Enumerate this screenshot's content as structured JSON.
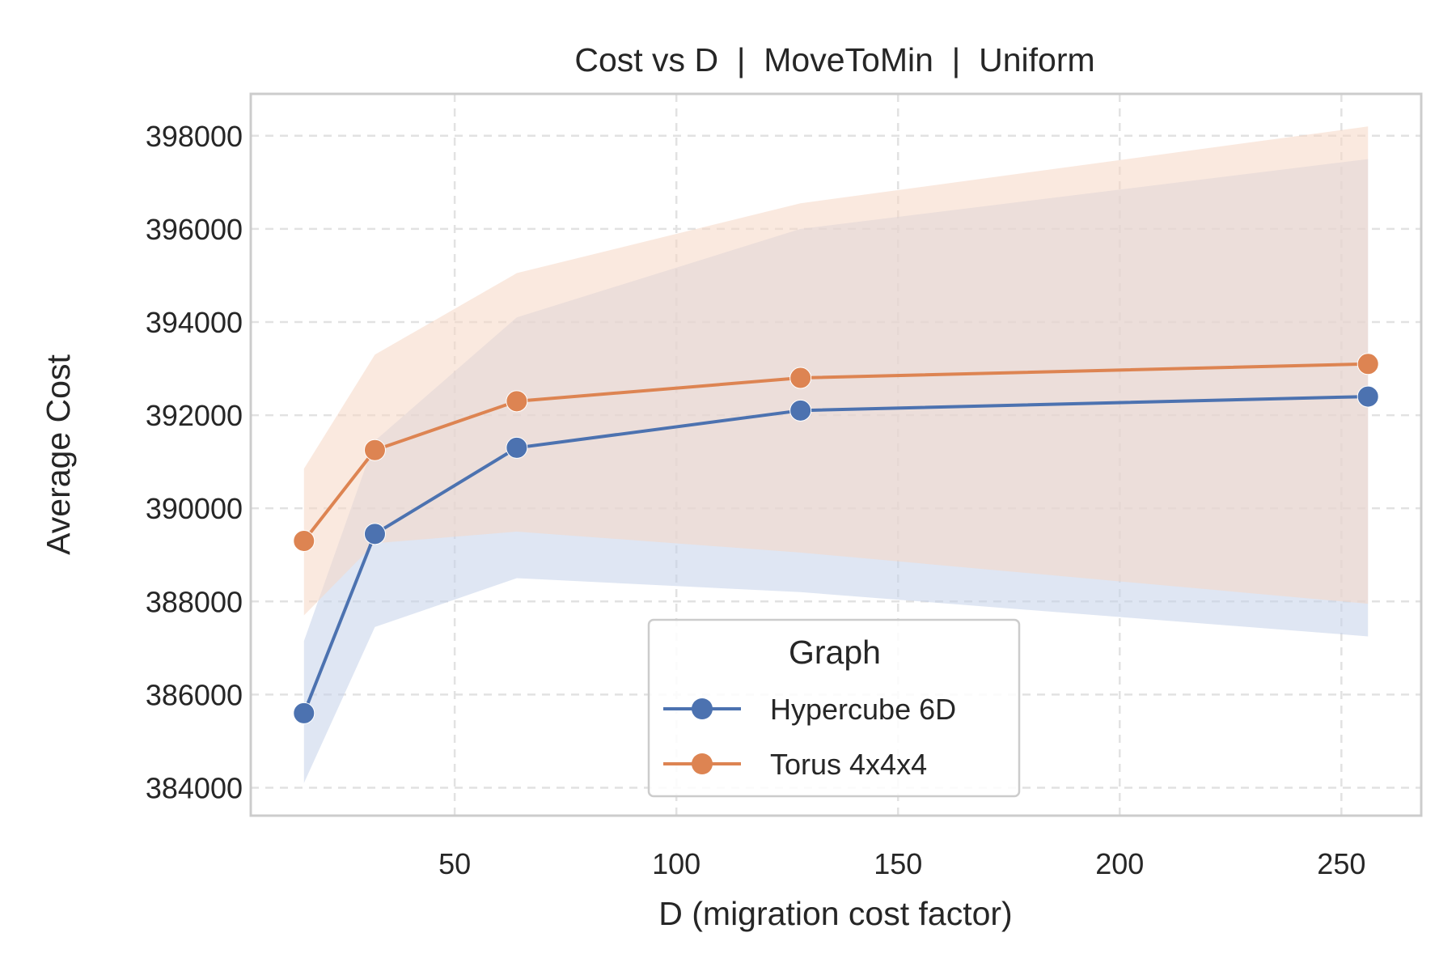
{
  "chart_data": {
    "type": "line",
    "title": "Cost vs D  |  MoveToMin  |  Uniform",
    "xlabel": "D (migration cost factor)",
    "ylabel": "Average Cost",
    "xlim": [
      4,
      268
    ],
    "ylim": [
      383400,
      398900
    ],
    "xticks": [
      50,
      100,
      150,
      200,
      250
    ],
    "yticks": [
      384000,
      386000,
      388000,
      390000,
      392000,
      394000,
      396000,
      398000
    ],
    "grid": true,
    "legend": {
      "title": "Graph",
      "position": "lower-center"
    },
    "x": [
      16,
      32,
      64,
      128,
      256
    ],
    "series": [
      {
        "name": "Hypercube 6D",
        "color": "#4c72b0",
        "band_color": "#c5d1e9",
        "values": [
          385600,
          389450,
          391300,
          392100,
          392400
        ],
        "lower": [
          384100,
          387450,
          388500,
          388200,
          387250
        ],
        "upper": [
          387150,
          391450,
          394100,
          396000,
          397500
        ]
      },
      {
        "name": "Torus 4x4x4",
        "color": "#dd8452",
        "band_color": "#f5d7c4",
        "values": [
          389300,
          391250,
          392300,
          392800,
          393100
        ],
        "lower": [
          387700,
          389250,
          389500,
          389050,
          387950
        ],
        "upper": [
          390850,
          393300,
          395050,
          396550,
          398200
        ]
      }
    ]
  }
}
